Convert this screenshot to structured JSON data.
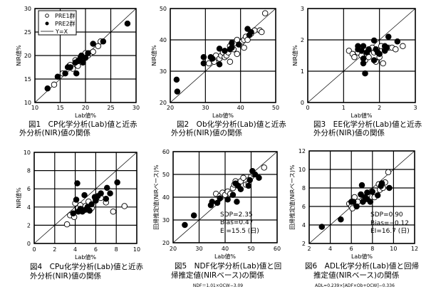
{
  "chart_data": [
    {
      "type": "scatter",
      "id": "fig1",
      "caption": [
        "図1　CP化学分析(Lab)値と近赤",
        "外分析(NIR)値の関係"
      ],
      "xlabel": "Lab値%",
      "ylabel": "NIR値%",
      "xlim": [
        10,
        30
      ],
      "ylim": [
        10,
        30
      ],
      "xticks": [
        10,
        15,
        20,
        25,
        30
      ],
      "yticks": [
        10,
        15,
        20,
        25,
        30
      ],
      "grid": true,
      "identity_line": true,
      "legend": {
        "placement": "top-left",
        "entries": [
          "PRE1群",
          "PRE2群",
          "Y=X"
        ]
      },
      "series": [
        {
          "name": "PRE1群",
          "marker": "open-circle",
          "points": [
            [
              13.8,
              13.8
            ],
            [
              15.5,
              16.2
            ],
            [
              16.8,
              17.8
            ],
            [
              17,
              18
            ],
            [
              17.5,
              17.2
            ],
            [
              18,
              19
            ],
            [
              18.5,
              17.8
            ],
            [
              19.5,
              19.5
            ],
            [
              20,
              20.5
            ],
            [
              20.5,
              20
            ],
            [
              21,
              20.5
            ],
            [
              21.5,
              20.8
            ],
            [
              22.5,
              22
            ],
            [
              23,
              23
            ]
          ]
        },
        {
          "name": "PRE2群",
          "marker": "filled-circle",
          "points": [
            [
              12.5,
              13
            ],
            [
              14.5,
              15.5
            ],
            [
              16,
              16.2
            ],
            [
              16.5,
              17.5
            ],
            [
              17,
              17.5
            ],
            [
              18,
              18.5
            ],
            [
              18.2,
              16.2
            ],
            [
              18.5,
              18.8
            ],
            [
              19,
              19.5
            ],
            [
              19.2,
              20
            ],
            [
              19.5,
              18.5
            ],
            [
              20,
              19.5
            ],
            [
              20.5,
              20.5
            ],
            [
              21.5,
              22.5
            ],
            [
              23.5,
              23
            ],
            [
              28.3,
              26.8
            ]
          ]
        }
      ]
    },
    {
      "type": "scatter",
      "id": "fig2",
      "caption": [
        "図2　Ob化学分析(Lab)値と近赤",
        "外分析(NIR)値の関係"
      ],
      "xlabel": "Lab値%",
      "ylabel": "NIR値%",
      "xlim": [
        20,
        50
      ],
      "ylim": [
        20,
        50
      ],
      "xticks": [
        20,
        30,
        40,
        50
      ],
      "yticks": [
        20,
        30,
        40,
        50
      ],
      "grid": true,
      "identity_line": true,
      "series": [
        {
          "name": "PRE1群",
          "marker": "open-circle",
          "points": [
            [
              31,
              32.5
            ],
            [
              32,
              34
            ],
            [
              32.5,
              33
            ],
            [
              33,
              35
            ],
            [
              34,
              34
            ],
            [
              34.5,
              35
            ],
            [
              35,
              36
            ],
            [
              35.5,
              34.5
            ],
            [
              36,
              35
            ],
            [
              36.5,
              36
            ],
            [
              37,
              33
            ],
            [
              37,
              38
            ],
            [
              38,
              37
            ],
            [
              38.5,
              39
            ],
            [
              39,
              35.5
            ],
            [
              39,
              40
            ],
            [
              40,
              38.5
            ],
            [
              40.5,
              39.5
            ],
            [
              41,
              37.5
            ],
            [
              41,
              40
            ],
            [
              41.5,
              41
            ],
            [
              42,
              40
            ],
            [
              43,
              42
            ],
            [
              44,
              43
            ],
            [
              45.5,
              43
            ],
            [
              46,
              42.5
            ],
            [
              47,
              48.5
            ]
          ]
        },
        {
          "name": "PRE2群",
          "marker": "filled-circle",
          "points": [
            [
              21.8,
              27.3
            ],
            [
              22,
              23.5
            ],
            [
              29.5,
              34.5
            ],
            [
              29.5,
              32.5
            ],
            [
              31.5,
              34.5
            ],
            [
              32,
              34
            ],
            [
              34,
              37.2
            ],
            [
              34,
              32.2
            ],
            [
              35.5,
              36.5
            ],
            [
              37,
              37
            ],
            [
              37.5,
              39
            ],
            [
              37.5,
              37.5
            ],
            [
              39.5,
              38.5
            ],
            [
              42,
              43.5
            ],
            [
              42.5,
              41.5
            ],
            [
              43,
              42.5
            ]
          ]
        }
      ]
    },
    {
      "type": "scatter",
      "id": "fig3",
      "caption": [
        "図3　EE化学分析(Lab)値と近赤",
        "外分析(NIR)値の関係"
      ],
      "xlabel": "Lab値%",
      "ylabel": "NIR値%",
      "xlim": [
        0,
        3
      ],
      "ylim": [
        0,
        3
      ],
      "xticks": [
        0,
        1,
        2,
        3
      ],
      "yticks": [
        0,
        1,
        2,
        3
      ],
      "grid": true,
      "identity_line": true,
      "series": [
        {
          "name": "PRE1群",
          "marker": "open-circle",
          "points": [
            [
              1.15,
              1.65
            ],
            [
              1.25,
              1.55
            ],
            [
              1.3,
              1.45
            ],
            [
              1.4,
              1.6
            ],
            [
              1.5,
              1.5
            ],
            [
              1.6,
              1.35
            ],
            [
              1.65,
              1.55
            ],
            [
              1.7,
              1.45
            ],
            [
              1.75,
              1.7
            ],
            [
              1.8,
              1.75
            ],
            [
              1.85,
              1.6
            ],
            [
              1.9,
              1.3
            ],
            [
              2.0,
              1.45
            ],
            [
              2.05,
              1.8
            ],
            [
              2.1,
              1.25
            ],
            [
              2.15,
              1.7
            ],
            [
              2.25,
              1.75
            ],
            [
              2.35,
              1.75
            ],
            [
              2.45,
              1.7
            ],
            [
              2.65,
              1.8
            ]
          ]
        },
        {
          "name": "PRE2群",
          "marker": "filled-circle",
          "points": [
            [
              1.4,
              1.8
            ],
            [
              1.4,
              1.7
            ],
            [
              1.5,
              1.65
            ],
            [
              1.55,
              1.8
            ],
            [
              1.55,
              1.4
            ],
            [
              1.55,
              1.25
            ],
            [
              1.6,
              0.93
            ],
            [
              1.65,
              1.6
            ],
            [
              1.7,
              1.7
            ],
            [
              1.85,
              1.98
            ],
            [
              1.85,
              1.35
            ],
            [
              1.9,
              1.7
            ],
            [
              1.95,
              1.6
            ],
            [
              2.0,
              1.55
            ],
            [
              2.15,
              1.8
            ],
            [
              2.15,
              1.65
            ],
            [
              2.2,
              1.75
            ],
            [
              2.25,
              2.1
            ],
            [
              2.5,
              1.95
            ]
          ]
        }
      ]
    },
    {
      "type": "scatter",
      "id": "fig4",
      "caption": [
        "図4　CPu化学分析(Lab)値と近赤",
        "外分析(NIR)値の関係"
      ],
      "xlabel": "Lab値%",
      "ylabel": "NIR値%",
      "xlim": [
        0,
        10
      ],
      "ylim": [
        0,
        10
      ],
      "xticks": [
        0,
        2,
        4,
        6,
        8,
        10
      ],
      "yticks": [
        0,
        2,
        4,
        6,
        8,
        10
      ],
      "grid": true,
      "identity_line": true,
      "series": [
        {
          "name": "PRE1群",
          "marker": "open-circle",
          "points": [
            [
              3.2,
              2.1
            ],
            [
              3.5,
              3.1
            ],
            [
              3.9,
              2.9
            ],
            [
              4.0,
              4.4
            ],
            [
              4.3,
              3.9
            ],
            [
              4.5,
              4.2
            ],
            [
              4.8,
              3.8
            ],
            [
              5.0,
              4.1
            ],
            [
              5.3,
              4.6
            ],
            [
              5.6,
              3.9
            ],
            [
              6.0,
              4.8
            ],
            [
              6.5,
              5.0
            ],
            [
              7.0,
              4.5
            ],
            [
              7.7,
              3.5
            ],
            [
              8.8,
              4.1
            ]
          ]
        },
        {
          "name": "PRE2群",
          "marker": "filled-circle",
          "points": [
            [
              3.8,
              3.3
            ],
            [
              4.1,
              4.8
            ],
            [
              4.2,
              6.6
            ],
            [
              4.3,
              3.5
            ],
            [
              4.5,
              3.8
            ],
            [
              4.7,
              3.5
            ],
            [
              4.9,
              5.3
            ],
            [
              5.0,
              3.7
            ],
            [
              5.2,
              4.0
            ],
            [
              5.4,
              3.6
            ],
            [
              5.6,
              4.3
            ],
            [
              5.9,
              5.1
            ],
            [
              6.0,
              4.7
            ],
            [
              6.2,
              5.2
            ],
            [
              6.5,
              5.5
            ],
            [
              7.0,
              4.9
            ],
            [
              7.1,
              6.1
            ],
            [
              7.4,
              5.5
            ],
            [
              8.1,
              6.7
            ]
          ]
        }
      ]
    },
    {
      "type": "scatter",
      "id": "fig5",
      "caption": [
        "図5　NDF化学分析(Lab)値と回",
        "帰推定値(NIRベース)の関係"
      ],
      "formula": "NDF＝1.01×OCW−3.09",
      "xlabel": "Lab値%",
      "ylabel": "回帰推定値(NIRベース)%",
      "xlim": [
        20,
        60
      ],
      "ylim": [
        20,
        60
      ],
      "xticks": [
        20,
        30,
        40,
        50,
        60
      ],
      "yticks": [
        20,
        30,
        40,
        50,
        60
      ],
      "grid": true,
      "identity_line": true,
      "annotations": [
        "SDP=2.35",
        "Bias=0.47",
        "EI=15.5 (日)"
      ],
      "series": [
        {
          "name": "PRE1群",
          "marker": "open-circle",
          "points": [
            [
              36.5,
              41.5
            ],
            [
              38,
              40.5
            ],
            [
              39,
              42
            ],
            [
              40,
              41
            ],
            [
              41,
              42.5
            ],
            [
              42,
              41.5
            ],
            [
              43,
              44
            ],
            [
              43.5,
              45.5
            ],
            [
              44,
              47
            ],
            [
              45,
              46
            ],
            [
              46,
              47
            ],
            [
              47,
              48.5
            ],
            [
              48,
              45.5
            ],
            [
              49,
              46
            ],
            [
              50,
              49
            ],
            [
              51,
              50
            ],
            [
              55,
              53
            ]
          ]
        },
        {
          "name": "PRE2群",
          "marker": "filled-circle",
          "points": [
            [
              24.5,
              27.8
            ],
            [
              28,
              32
            ],
            [
              34.5,
              36.5
            ],
            [
              35,
              38
            ],
            [
              37,
              37.5
            ],
            [
              38,
              39.5
            ],
            [
              41,
              39
            ],
            [
              43,
              41
            ],
            [
              44,
              46
            ],
            [
              44.5,
              38
            ],
            [
              45,
              45
            ],
            [
              46,
              43.5
            ],
            [
              49,
              45
            ],
            [
              49.5,
              47.5
            ],
            [
              50.5,
              51.5
            ],
            [
              51.5,
              50
            ],
            [
              53,
              48.5
            ]
          ]
        }
      ]
    },
    {
      "type": "scatter",
      "id": "fig6",
      "caption": [
        "図6　ADL化学分析(Lab)値と回帰",
        "推定値(NIRベース)の関係"
      ],
      "formula": "ADL=0.239×[ADF×Ob+OCW]−0.336",
      "xlabel": "Lab値%",
      "ylabel": "回帰推定値(NIRベース)%",
      "xlim": [
        2,
        12
      ],
      "ylim": [
        2,
        12
      ],
      "xticks": [
        2,
        4,
        6,
        8,
        10,
        12
      ],
      "yticks": [
        2,
        4,
        6,
        8,
        10,
        12
      ],
      "grid": true,
      "identity_line": true,
      "annotations": [
        "SDP=0.90",
        "Bias=−0.12",
        "EI=16.7 (日)"
      ],
      "series": [
        {
          "name": "PRE1群",
          "marker": "open-circle",
          "points": [
            [
              5.8,
              6.3
            ],
            [
              6.0,
              6.0
            ],
            [
              6.1,
              5.8
            ],
            [
              6.3,
              7.0
            ],
            [
              6.6,
              6.5
            ],
            [
              6.9,
              7.3
            ],
            [
              7.2,
              6.7
            ],
            [
              7.5,
              7.2
            ],
            [
              7.9,
              7.6
            ],
            [
              8.2,
              7.0
            ],
            [
              8.6,
              8.4
            ],
            [
              8.7,
              7.8
            ],
            [
              9.0,
              8.0
            ],
            [
              9.2,
              8.6
            ],
            [
              9.5,
              9.7
            ]
          ]
        },
        {
          "name": "PRE2群",
          "marker": "filled-circle",
          "points": [
            [
              3.2,
              3.8
            ],
            [
              5.0,
              4.6
            ],
            [
              6.0,
              6.5
            ],
            [
              6.2,
              6.5
            ],
            [
              6.5,
              6.0
            ],
            [
              6.9,
              7.3
            ],
            [
              7.0,
              8.3
            ],
            [
              7.1,
              6.5
            ],
            [
              7.3,
              7.0
            ],
            [
              7.5,
              6.8
            ],
            [
              7.5,
              7.5
            ],
            [
              7.8,
              6.5
            ],
            [
              8.0,
              7.6
            ],
            [
              8.5,
              7.2
            ],
            [
              8.8,
              8.2
            ],
            [
              8.9,
              8.5
            ],
            [
              9.6,
              8.0
            ]
          ]
        }
      ]
    }
  ]
}
